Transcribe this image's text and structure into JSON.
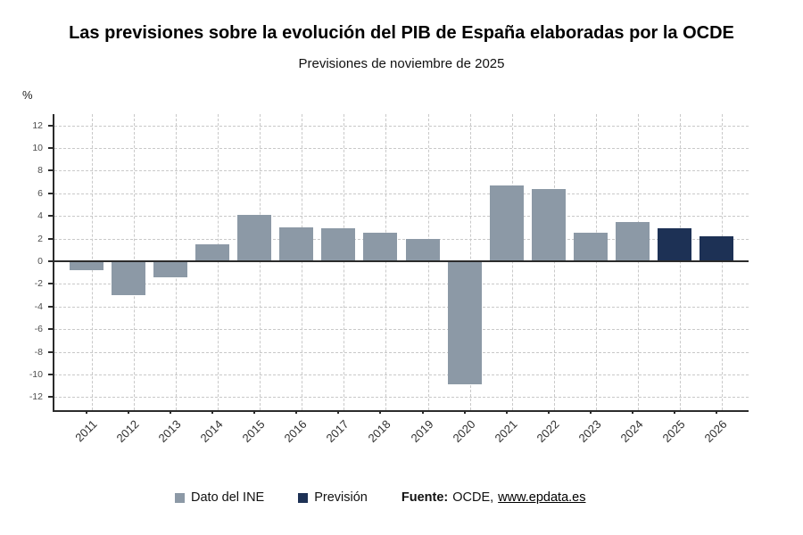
{
  "chart_data": {
    "type": "bar",
    "title": "Las previsiones sobre la evolución del PIB de España elaboradas por la OCDE",
    "subtitle": "Previsiones de noviembre de 2025",
    "unit": "%",
    "categories": [
      "2011",
      "2012",
      "2013",
      "2014",
      "2015",
      "2016",
      "2017",
      "2018",
      "2019",
      "2020",
      "2021",
      "2022",
      "2023",
      "2024",
      "2025",
      "2026"
    ],
    "series": [
      {
        "name": "Dato del INE",
        "color": "#8C99A6",
        "values": [
          -0.8,
          -3.0,
          -1.4,
          1.5,
          4.1,
          3.0,
          2.9,
          2.5,
          2.0,
          -10.9,
          6.7,
          6.4,
          2.5,
          3.5,
          null,
          null
        ]
      },
      {
        "name": "Previsión",
        "color": "#1D3155",
        "values": [
          null,
          null,
          null,
          null,
          null,
          null,
          null,
          null,
          null,
          null,
          null,
          null,
          null,
          null,
          2.9,
          2.2
        ]
      }
    ],
    "ylabel": "%",
    "ylim": [
      -13,
      13
    ],
    "ytick_step": 2,
    "yticks": [
      12,
      10,
      8,
      6,
      4,
      2,
      0,
      -2,
      -4,
      -6,
      -8,
      -10,
      -12
    ],
    "grid": "dashed",
    "legend_position": "bottom"
  },
  "legend": {
    "items": [
      {
        "label": "Dato del INE",
        "color": "#8C99A6"
      },
      {
        "label": "Previsión",
        "color": "#1D3155"
      }
    ]
  },
  "source": {
    "prefix": "Fuente:",
    "text": "OCDE,",
    "link": "www.epdata.es"
  },
  "colors": {
    "axis": "#2b2b2b",
    "grid": "#c9c9c9",
    "bar_gray": "#8C99A6",
    "bar_navy": "#1D3155"
  }
}
